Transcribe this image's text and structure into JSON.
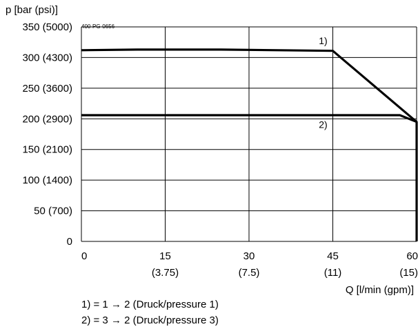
{
  "chart_data": {
    "type": "line",
    "ylabel": "p [bar (psi)]",
    "xlabel": "Q [l/min (gpm)]",
    "figure_id": "400-PG-0656",
    "xlim": [
      0,
      60
    ],
    "ylim": [
      0,
      350
    ],
    "x_ticks": [
      {
        "value": 0,
        "label": "0",
        "sub": ""
      },
      {
        "value": 15,
        "label": "15",
        "sub": "(3.75)"
      },
      {
        "value": 30,
        "label": "30",
        "sub": "(7.5)"
      },
      {
        "value": 45,
        "label": "45",
        "sub": "(11)"
      },
      {
        "value": 60,
        "label": "60",
        "sub": "(15)"
      }
    ],
    "y_ticks": [
      {
        "value": 0,
        "label": "0"
      },
      {
        "value": 50,
        "label": "50 (700)"
      },
      {
        "value": 100,
        "label": "100 (1400)"
      },
      {
        "value": 150,
        "label": "150 (2100)"
      },
      {
        "value": 200,
        "label": "200 (2900)"
      },
      {
        "value": 250,
        "label": "250 (3600)"
      },
      {
        "value": 300,
        "label": "300 (4300)"
      },
      {
        "value": 350,
        "label": "350 (5000)"
      }
    ],
    "grid": true,
    "series": [
      {
        "name": "1)",
        "points": [
          [
            0,
            312
          ],
          [
            10,
            313
          ],
          [
            25,
            313
          ],
          [
            45,
            311
          ],
          [
            60,
            195
          ]
        ]
      },
      {
        "name": "2)",
        "points": [
          [
            0,
            206
          ],
          [
            57,
            206
          ],
          [
            60,
            195
          ],
          [
            60,
            0
          ]
        ]
      }
    ],
    "annotations": [
      {
        "text": "1)",
        "x": 42.5,
        "y": 322
      },
      {
        "text": "2)",
        "x": 42.5,
        "y": 185
      }
    ],
    "notes": [
      "1) = 1 → 2 (Druck/pressure 1)",
      "2) = 3 → 2 (Druck/pressure 3)"
    ]
  }
}
